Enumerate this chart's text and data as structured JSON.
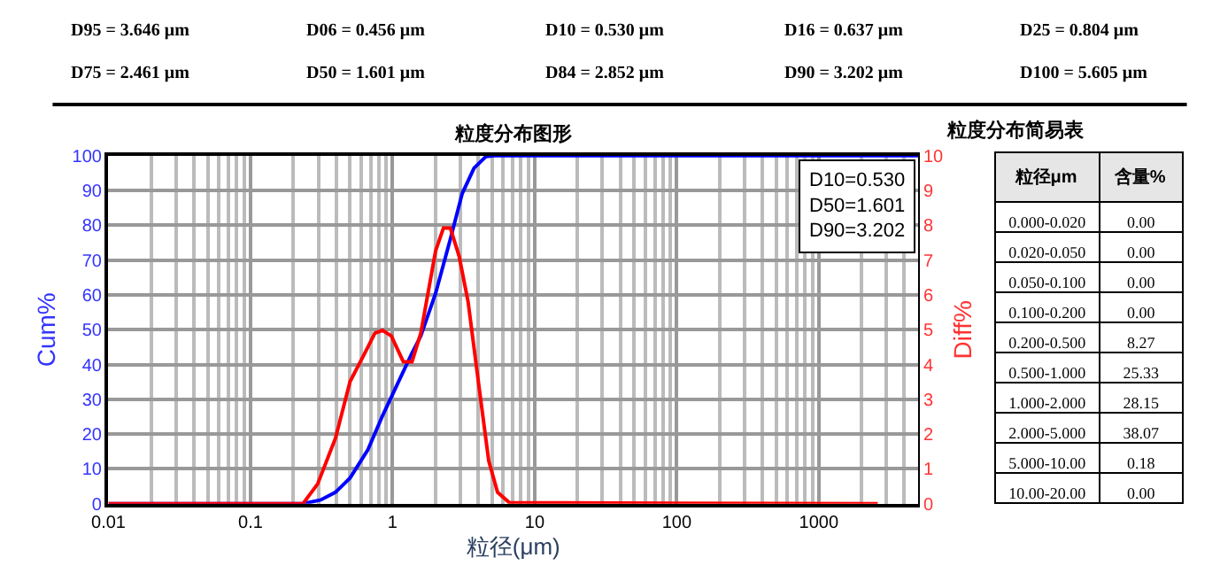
{
  "chart_data": [
    {
      "type": "line",
      "title": "粒度分布图形",
      "xlabel": "粒径(μm)",
      "ylabel": "Cum%",
      "y2label": "Diff%",
      "log": "x",
      "xlim": [
        0.01,
        5000
      ],
      "xticks": [
        0.01,
        0.1,
        1,
        10,
        100,
        1000
      ],
      "ylim": [
        0,
        100
      ],
      "yticks": [
        0,
        10,
        20,
        30,
        40,
        50,
        60,
        70,
        80,
        90,
        100
      ],
      "y2lim": [
        0,
        10
      ],
      "y2ticks": [
        0,
        1,
        2,
        3,
        4,
        5,
        6,
        7,
        8,
        9,
        10
      ],
      "grid": true,
      "marker": "none",
      "line_style": "solid",
      "annotations": [
        "D95 = 3.646 μm",
        "D06 = 0.456 μm",
        "D10 = 0.530 μm",
        "D16 = 0.637 μm",
        "D25 = 0.804 μm",
        "D75 = 2.461 μm",
        "D50 = 1.601 μm",
        "D84 = 2.852 μm",
        "D90 = 3.202 μm",
        "D100 = 5.605 μm",
        "D10=0.530\nD50=1.601\nD90=3.202"
      ],
      "series": [
        {
          "color": "#0000ff",
          "x": [
            0.01,
            0.234,
            0.312,
            0.396,
            0.502,
            0.67,
            0.85,
            1.08,
            1.37,
            1.58,
            2.01,
            2.55,
            3.09,
            3.74,
            4.53,
            5.2,
            5000
          ],
          "values": [
            0,
            0,
            1.1,
            3.3,
            7.4,
            15.5,
            25.3,
            34.3,
            43.3,
            48.2,
            60.5,
            76.0,
            89.1,
            96.4,
            99.7,
            100,
            100
          ]
        },
        {
          "color": "#ff0000",
          "axis": "y2",
          "x": [
            0.01,
            0.234,
            0.297,
            0.396,
            0.502,
            0.638,
            0.751,
            0.85,
            0.98,
            1.19,
            1.37,
            1.58,
            2.01,
            2.28,
            2.55,
            2.94,
            3.4,
            4.11,
            4.75,
            5.48,
            6.64,
            2600
          ],
          "values": [
            0,
            0,
            0.57,
            1.88,
            3.51,
            4.33,
            4.9,
            4.98,
            4.82,
            4.08,
            4.08,
            4.9,
            7.27,
            7.92,
            7.92,
            7.11,
            5.8,
            3.19,
            1.23,
            0.33,
            0.03,
            0
          ]
        }
      ]
    },
    {
      "type": "other",
      "title": "粒度分布简易表",
      "annotations": [
        "粒径μm",
        "含量%"
      ],
      "categories": [
        "0.000-0.020",
        "0.020-0.050",
        "0.050-0.100",
        "0.100-0.200",
        "0.200-0.500",
        "0.500-1.000",
        "1.000-2.000",
        "2.000-5.000",
        "5.000-10.00",
        "10.00-20.00"
      ],
      "value_labels": [
        "0.00",
        "0.00",
        "0.00",
        "0.00",
        "8.27",
        "25.33",
        "28.15",
        "38.07",
        "0.18",
        "0.00"
      ]
    }
  ]
}
